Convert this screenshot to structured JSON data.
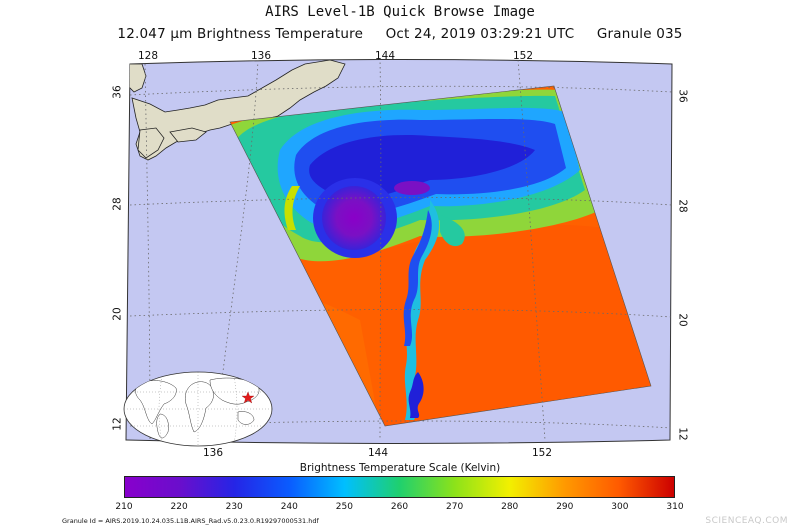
{
  "header": {
    "title": "AIRS Level-1B Quick Browse Image",
    "subtitle_channel": "12.047 μm Brightness Temperature",
    "subtitle_date": "Oct 24, 2019 03:29:21 UTC",
    "subtitle_granule": "Granule 035"
  },
  "map": {
    "top_longitude_labels": [
      "128",
      "136",
      "144",
      "152"
    ],
    "bottom_longitude_labels": [
      "136",
      "144",
      "152"
    ],
    "left_latitude_labels": [
      "36",
      "28",
      "20",
      "12"
    ],
    "right_latitude_labels": [
      "36",
      "28",
      "20",
      "12"
    ],
    "colors": {
      "land": "#e0ddc8",
      "ocean_background": "#c4c8f2",
      "graticule": "#6a6a6a",
      "marker": "#e21b1b"
    },
    "inset": {
      "icon": "world-locator-icon",
      "marker_icon": "location-star-icon"
    }
  },
  "colorbar": {
    "title": "Brightness Temperature Scale (Kelvin)",
    "ticks": [
      "210",
      "220",
      "230",
      "240",
      "250",
      "260",
      "270",
      "280",
      "290",
      "300",
      "310"
    ],
    "colors": [
      "#8800cc",
      "#6a0ecc",
      "#2525e6",
      "#0a5cff",
      "#00bfff",
      "#1fd06e",
      "#8ce21a",
      "#f2f000",
      "#ff9a00",
      "#ff5a00",
      "#cc0000"
    ]
  },
  "footer": {
    "granule_id": "Granule Id = AIRS.2019.10.24.035.L1B.AIRS_Rad.v5.0.23.0.R19297000531.hdf",
    "watermark": "SCIENCEAQ.COM"
  }
}
